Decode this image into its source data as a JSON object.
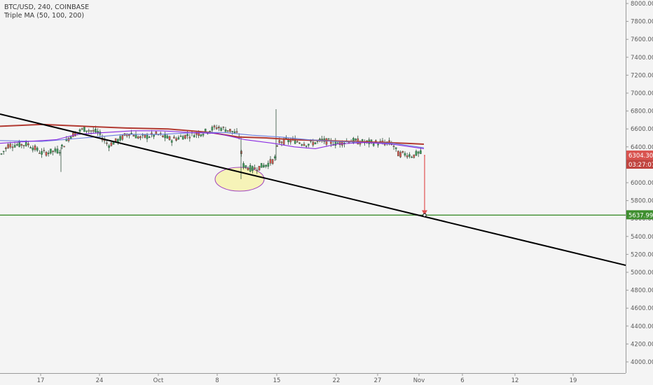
{
  "header": {
    "symbol_line": "BTC/USD, 240, COINBASE",
    "indicator_line": "Triple MA (50, 100, 200)"
  },
  "colors": {
    "background": "#f4f4f4",
    "axis_bg": "#f4f4f4",
    "candle_up": "#3e9a5a",
    "candle_down": "#d9534f",
    "ma_fast": "#8a2be2",
    "ma_mid": "#6c7fe0",
    "ma_slow": "#b23a32",
    "trend_line": "#000000",
    "support_line": "#3e8e2e",
    "arrow": "#e05050",
    "highlight_fill": "#f6f3b8",
    "highlight_stroke": "#a040c0",
    "price_badge": "#d9534f",
    "support_badge": "#3e8e2e"
  },
  "price_axis": {
    "ticks": [
      "8000.00",
      "7800.00",
      "7600.00",
      "7400.00",
      "7200.00",
      "7000.00",
      "6800.00",
      "6600.00",
      "6400.00",
      "6200.00",
      "6000.00",
      "5800.00",
      "5600.00",
      "5400.00",
      "5200.00",
      "5000.00",
      "4800.00",
      "4600.00",
      "4400.00",
      "4200.00",
      "4000.00"
    ]
  },
  "time_axis": {
    "labels": [
      "17",
      "24",
      "Oct",
      "8",
      "15",
      "22",
      "27",
      "Nov",
      "6",
      "12",
      "19"
    ]
  },
  "badges": {
    "last_price": "6304.30",
    "countdown": "03:27:07",
    "support_price": "5637.99"
  },
  "chart_data": {
    "type": "line",
    "title": "BTC/USD, 240, COINBASE",
    "ylim": [
      4000,
      8000
    ],
    "grid": false,
    "legend": "top-left",
    "series": [
      {
        "name": "BTC/USD",
        "x": [
          "17",
          "24",
          "Oct",
          "8",
          "15",
          "22",
          "27",
          "Nov"
        ],
        "values": [
          6300,
          6480,
          6600,
          6560,
          6420,
          6470,
          6420,
          6304.3
        ]
      }
    ],
    "annotations": {
      "support_level": 5637.99,
      "trendline_start": {
        "x": "Sep 12",
        "y": 6780
      },
      "trendline_end": {
        "x": "Nov 24",
        "y": 5110
      },
      "highlight_zone": {
        "x": "Oct 8-12",
        "y_range": [
          5950,
          6200
        ]
      },
      "projection_arrow": {
        "from": 6304.3,
        "to": 5637.99
      }
    }
  }
}
